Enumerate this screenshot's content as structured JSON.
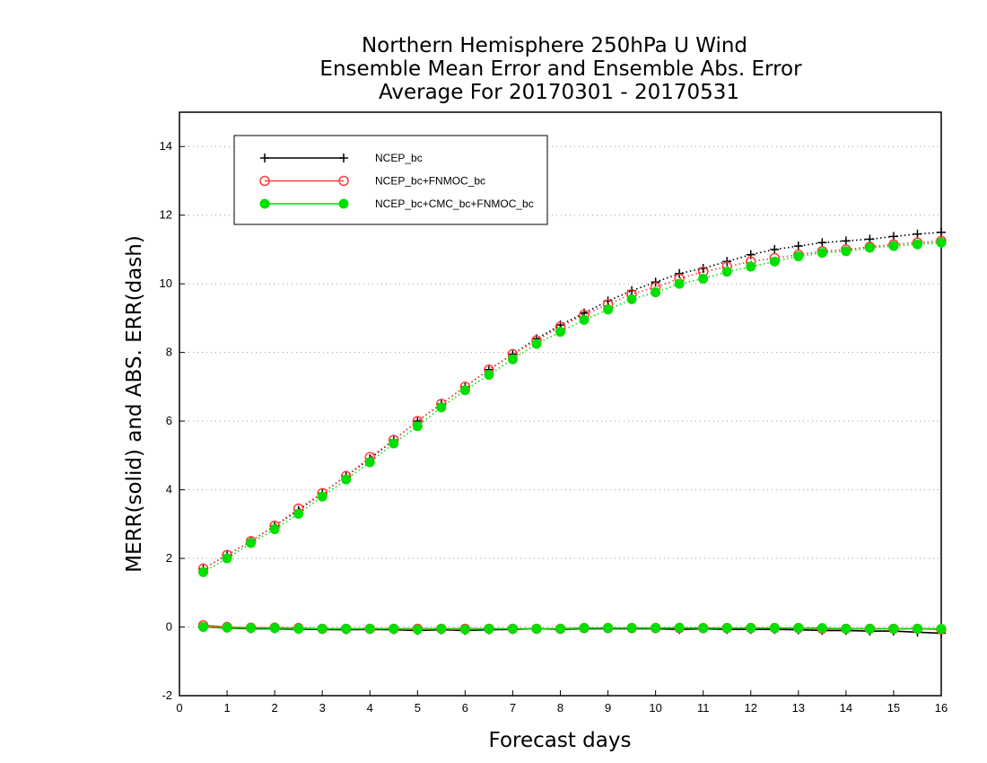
{
  "chart_data": {
    "type": "line",
    "title_lines": [
      "Northern Hemisphere 250hPa U Wind",
      "Ensemble Mean Error and Ensemble Abs. Error",
      "Average For 20170301 - 20170531"
    ],
    "xlabel": "Forecast days",
    "ylabel": "MERR(solid) and ABS. ERR(dash)",
    "xlim": [
      0,
      16
    ],
    "ylim": [
      -2,
      15
    ],
    "xticks": [
      "0",
      "1",
      "2",
      "3",
      "4",
      "5",
      "6",
      "7",
      "8",
      "9",
      "10",
      "11",
      "12",
      "13",
      "14",
      "15",
      "16"
    ],
    "yticks": [
      "-2",
      "0",
      "2",
      "4",
      "6",
      "8",
      "10",
      "12",
      "14"
    ],
    "grid": "horizontal dotted",
    "legend_position": "top-left",
    "x": [
      0.5,
      1,
      1.5,
      2,
      2.5,
      3,
      3.5,
      4,
      4.5,
      5,
      5.5,
      6,
      6.5,
      7,
      7.5,
      8,
      8.5,
      9,
      9.5,
      10,
      10.5,
      11,
      11.5,
      12,
      12.5,
      13,
      13.5,
      14,
      14.5,
      15,
      15.5,
      16
    ],
    "series": [
      {
        "name": "NCEP_bc",
        "color": "#000000",
        "marker": "plus",
        "abs_err": [
          1.7,
          2.1,
          2.5,
          2.95,
          3.4,
          3.9,
          4.4,
          4.9,
          5.45,
          6.0,
          6.5,
          7.0,
          7.5,
          7.95,
          8.4,
          8.8,
          9.15,
          9.5,
          9.8,
          10.05,
          10.3,
          10.45,
          10.65,
          10.85,
          11.0,
          11.1,
          11.2,
          11.25,
          11.3,
          11.38,
          11.45,
          11.5
        ],
        "mean_err": [
          0.0,
          -0.03,
          -0.05,
          -0.05,
          -0.07,
          -0.07,
          -0.08,
          -0.07,
          -0.08,
          -0.1,
          -0.08,
          -0.1,
          -0.08,
          -0.07,
          -0.05,
          -0.07,
          -0.05,
          -0.05,
          -0.05,
          -0.05,
          -0.07,
          -0.05,
          -0.07,
          -0.07,
          -0.07,
          -0.08,
          -0.1,
          -0.1,
          -0.12,
          -0.12,
          -0.15,
          -0.18
        ]
      },
      {
        "name": "NCEP_bc+FNMOC_bc",
        "color": "#ff3b3b",
        "marker": "open-circle",
        "abs_err": [
          1.7,
          2.1,
          2.5,
          2.95,
          3.45,
          3.9,
          4.4,
          4.95,
          5.45,
          6.0,
          6.5,
          7.0,
          7.5,
          7.95,
          8.35,
          8.75,
          9.1,
          9.4,
          9.7,
          9.9,
          10.15,
          10.35,
          10.5,
          10.65,
          10.75,
          10.85,
          10.95,
          11.0,
          11.08,
          11.15,
          11.2,
          11.25
        ],
        "mean_err": [
          0.05,
          0.0,
          -0.02,
          -0.02,
          -0.03,
          -0.05,
          -0.05,
          -0.05,
          -0.05,
          -0.05,
          -0.05,
          -0.05,
          -0.05,
          -0.05,
          -0.05,
          -0.05,
          -0.03,
          -0.03,
          -0.03,
          -0.03,
          -0.03,
          -0.03,
          -0.03,
          -0.03,
          -0.03,
          -0.03,
          -0.05,
          -0.05,
          -0.05,
          -0.05,
          -0.05,
          -0.07
        ]
      },
      {
        "name": "NCEP_bc+CMC_bc+FNMOC_bc",
        "color": "#00e000",
        "marker": "filled-circle",
        "abs_err": [
          1.6,
          2.0,
          2.45,
          2.85,
          3.3,
          3.8,
          4.3,
          4.8,
          5.35,
          5.85,
          6.4,
          6.9,
          7.35,
          7.8,
          8.25,
          8.6,
          8.95,
          9.25,
          9.55,
          9.75,
          10.0,
          10.15,
          10.35,
          10.5,
          10.65,
          10.8,
          10.9,
          10.95,
          11.05,
          11.1,
          11.15,
          11.2
        ],
        "mean_err": [
          0.0,
          -0.02,
          -0.03,
          -0.03,
          -0.05,
          -0.05,
          -0.05,
          -0.05,
          -0.05,
          -0.07,
          -0.05,
          -0.07,
          -0.05,
          -0.05,
          -0.05,
          -0.05,
          -0.03,
          -0.03,
          -0.03,
          -0.03,
          -0.02,
          -0.03,
          -0.03,
          -0.03,
          -0.03,
          -0.03,
          -0.03,
          -0.05,
          -0.05,
          -0.05,
          -0.05,
          -0.05
        ]
      }
    ]
  }
}
